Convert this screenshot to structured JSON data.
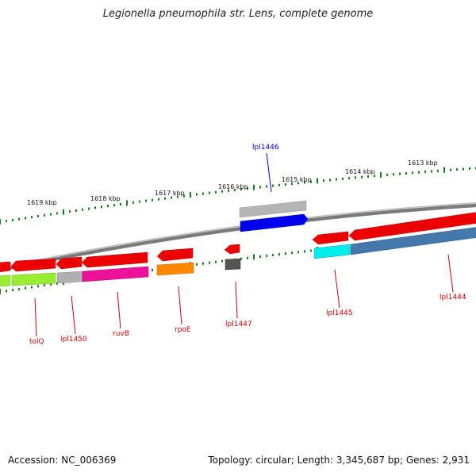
{
  "title": "Legionella pneumophila str. Lens, complete genome",
  "footer": {
    "accession": "Accession: NC_006369",
    "summary": "Topology: circular; Length: 3,345,687 bp; Genes: 2,931"
  },
  "scale": {
    "unit": "kbp",
    "labels": [
      {
        "text": "1619 kbp",
        "kbp": 1619
      },
      {
        "text": "1618 kbp",
        "kbp": 1618
      },
      {
        "text": "1617 kbp",
        "kbp": 1617
      },
      {
        "text": "1616 kbp",
        "kbp": 1616
      },
      {
        "text": "1615 kbp",
        "kbp": 1615
      },
      {
        "text": "1614 kbp",
        "kbp": 1614
      },
      {
        "text": "1613 kbp",
        "kbp": 1613
      }
    ]
  },
  "genes": [
    {
      "name": "tolQ",
      "strand": "minus",
      "color": "#cc0000"
    },
    {
      "name": "lpl1450",
      "strand": "minus",
      "color": "#cc0000"
    },
    {
      "name": "ruvB",
      "strand": "minus",
      "color": "#cc0000"
    },
    {
      "name": "rpoE",
      "strand": "minus",
      "color": "#cc0000"
    },
    {
      "name": "lpl1447",
      "strand": "minus",
      "color": "#cc0000"
    },
    {
      "name": "lpl1446",
      "strand": "plus",
      "color": "#0000cc"
    },
    {
      "name": "lpl1445",
      "strand": "minus",
      "color": "#cc0000"
    },
    {
      "name": "lpl1444",
      "strand": "minus",
      "color": "#cc0000"
    }
  ],
  "colors": {
    "backbone": "#777777",
    "cds": "#ee0000",
    "plus_cds": "#0000ee",
    "tick": "#1a7a1a",
    "cog_green": "#99ee33",
    "cog_gray": "#b0b0b0",
    "cog_pink": "#ee1199",
    "cog_orange": "#ff8800",
    "cog_dark": "#555555",
    "cog_cyan": "#00eeee",
    "cog_steel": "#4477aa",
    "cog_silver": "#bbbbbb"
  }
}
